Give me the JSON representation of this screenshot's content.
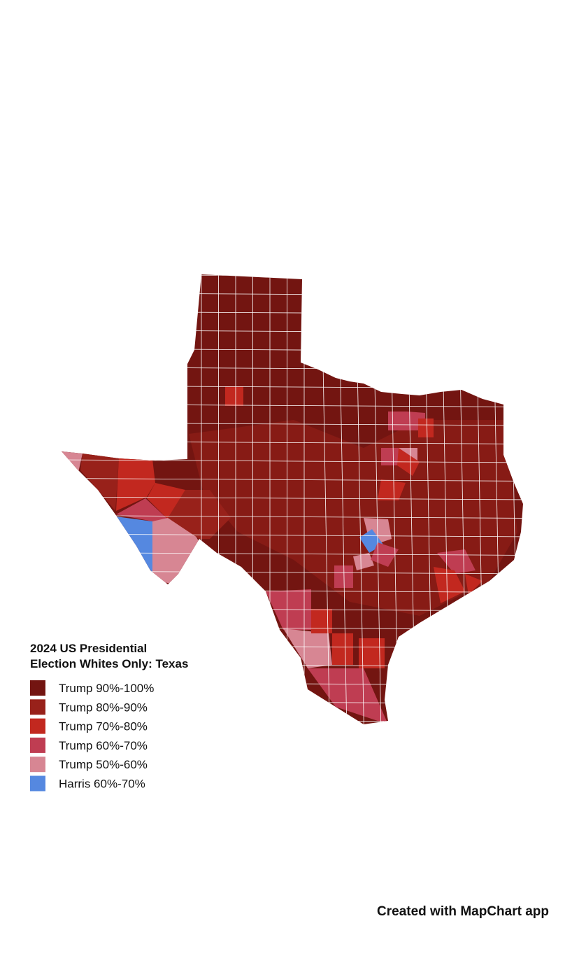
{
  "title_lines": [
    "2024 US Presidential",
    "Election Whites Only: Texas"
  ],
  "legend": {
    "items": [
      {
        "label": "Trump 90%-100%",
        "color": "#731511"
      },
      {
        "label": "Trump 80%-90%",
        "color": "#98211a"
      },
      {
        "label": "Trump 70%-80%",
        "color": "#c2281f"
      },
      {
        "label": "Trump 60%-70%",
        "color": "#bf3d52"
      },
      {
        "label": "Trump 50%-60%",
        "color": "#d78693"
      },
      {
        "label": "Harris 60%-70%",
        "color": "#5588e0"
      }
    ]
  },
  "footer": "Created with MapChart app"
}
